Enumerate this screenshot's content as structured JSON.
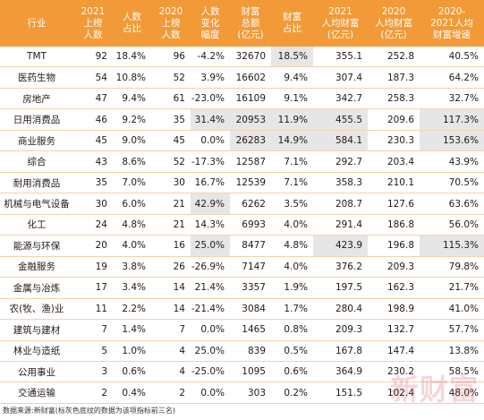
{
  "chart_data": {
    "type": "table",
    "columns": [
      "行业",
      "2021\n上榜\n人数",
      "人数\n占比",
      "2020\n上榜\n人数",
      "人数\n变化\n幅度",
      "财富\n总额\n(亿元)",
      "财富\n占比",
      "2021\n人均财富\n(亿元)",
      "2020\n人均财富\n(亿元)",
      "2020-\n2021人均\n财富增速"
    ],
    "rows": [
      [
        "TMT",
        "92",
        "18.4%",
        "96",
        "-4.2%",
        "32670",
        "18.5%",
        "355.1",
        "252.8",
        "40.5%"
      ],
      [
        "医药生物",
        "54",
        "10.8%",
        "52",
        "3.9%",
        "16602",
        "9.4%",
        "307.4",
        "187.3",
        "64.2%"
      ],
      [
        "房地产",
        "47",
        "9.4%",
        "61",
        "-23.0%",
        "16109",
        "9.1%",
        "342.7",
        "258.3",
        "32.7%"
      ],
      [
        "日用消费品",
        "46",
        "9.2%",
        "35",
        "31.4%",
        "20953",
        "11.9%",
        "455.5",
        "209.6",
        "117.3%"
      ],
      [
        "商业服务",
        "45",
        "9.0%",
        "45",
        "0.0%",
        "26283",
        "14.9%",
        "584.1",
        "230.3",
        "153.6%"
      ],
      [
        "综合",
        "43",
        "8.6%",
        "52",
        "-17.3%",
        "12587",
        "7.1%",
        "292.7",
        "203.4",
        "43.9%"
      ],
      [
        "耐用消费品",
        "35",
        "7.0%",
        "30",
        "16.7%",
        "12539",
        "7.1%",
        "358.3",
        "210.1",
        "70.5%"
      ],
      [
        "机械与电气设备",
        "30",
        "6.0%",
        "21",
        "42.9%",
        "6262",
        "3.5%",
        "208.7",
        "127.6",
        "63.6%"
      ],
      [
        "化工",
        "24",
        "4.8%",
        "21",
        "14.3%",
        "6993",
        "4.0%",
        "291.4",
        "186.8",
        "56.0%"
      ],
      [
        "能源与环保",
        "20",
        "4.0%",
        "16",
        "25.0%",
        "8477",
        "4.8%",
        "423.9",
        "196.8",
        "115.3%"
      ],
      [
        "金融服务",
        "19",
        "3.8%",
        "26",
        "-26.9%",
        "7147",
        "4.0%",
        "376.2",
        "209.3",
        "79.8%"
      ],
      [
        "金属与冶炼",
        "17",
        "3.4%",
        "14",
        "21.4%",
        "3357",
        "1.9%",
        "197.5",
        "162.3",
        "21.7%"
      ],
      [
        "农(牧、渔)业",
        "11",
        "2.2%",
        "14",
        "-21.4%",
        "3084",
        "1.7%",
        "280.4",
        "198.9",
        "41.0%"
      ],
      [
        "建筑与建材",
        "7",
        "1.4%",
        "7",
        "0.0%",
        "1465",
        "0.8%",
        "209.3",
        "132.7",
        "57.7%"
      ],
      [
        "林业与造纸",
        "5",
        "1.0%",
        "4",
        "25.0%",
        "839",
        "0.5%",
        "167.8",
        "147.4",
        "13.8%"
      ],
      [
        "公用事业",
        "3",
        "0.6%",
        "4",
        "-25.0%",
        "1095",
        "0.6%",
        "364.9",
        "230.2",
        "58.5%"
      ],
      [
        "交通运输",
        "2",
        "0.4%",
        "2",
        "0.0%",
        "303",
        "0.2%",
        "151.5",
        "102.4",
        "48.0%"
      ]
    ],
    "highlighted_cells": [
      [
        0,
        6
      ],
      [
        3,
        4
      ],
      [
        3,
        5
      ],
      [
        3,
        6
      ],
      [
        3,
        7
      ],
      [
        3,
        9
      ],
      [
        4,
        5
      ],
      [
        4,
        6
      ],
      [
        4,
        7
      ],
      [
        4,
        9
      ],
      [
        7,
        4
      ],
      [
        9,
        4
      ],
      [
        9,
        7
      ],
      [
        9,
        9
      ]
    ],
    "highlight_color": "#e6e6e6",
    "header_color": "#f29a38",
    "row_rule_color": "#f6d2a8",
    "source_note": "数据来源:新财富(标灰色底纹的数据为该项指标前三名)",
    "watermark": "新财富"
  }
}
